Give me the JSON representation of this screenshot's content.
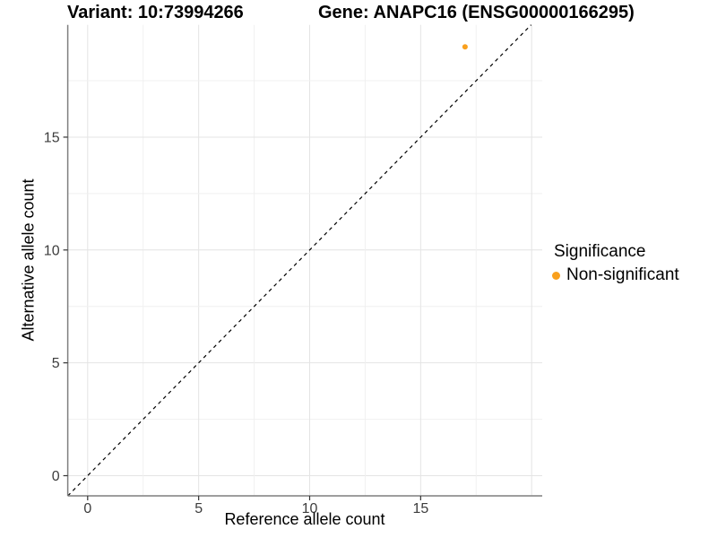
{
  "chart_data": {
    "type": "scatter",
    "title_left": "Variant: 10:73994266",
    "title_right": "Gene: ANAPC16 (ENSG00000166295)",
    "xlabel": "Reference allele count",
    "ylabel": "Alternative allele count",
    "x_ticks": [
      0,
      5,
      10,
      15
    ],
    "y_ticks": [
      0,
      5,
      10,
      15
    ],
    "xlim": [
      -0.9,
      20.4
    ],
    "ylim": [
      -0.9,
      20.0
    ],
    "grid": true,
    "minor_grid_step": 2.5,
    "major_grid_step": 5,
    "reference_line": {
      "type": "identity y=x",
      "style": "dashed",
      "color": "#000000"
    },
    "series": [
      {
        "name": "Non-significant",
        "color": "#F9A01D",
        "points": [
          [
            17,
            19
          ]
        ]
      }
    ],
    "legend": {
      "title": "Significance",
      "position": "right",
      "entries": [
        {
          "label": "Non-significant",
          "color": "#F9A01D",
          "marker": "circle"
        }
      ]
    }
  }
}
